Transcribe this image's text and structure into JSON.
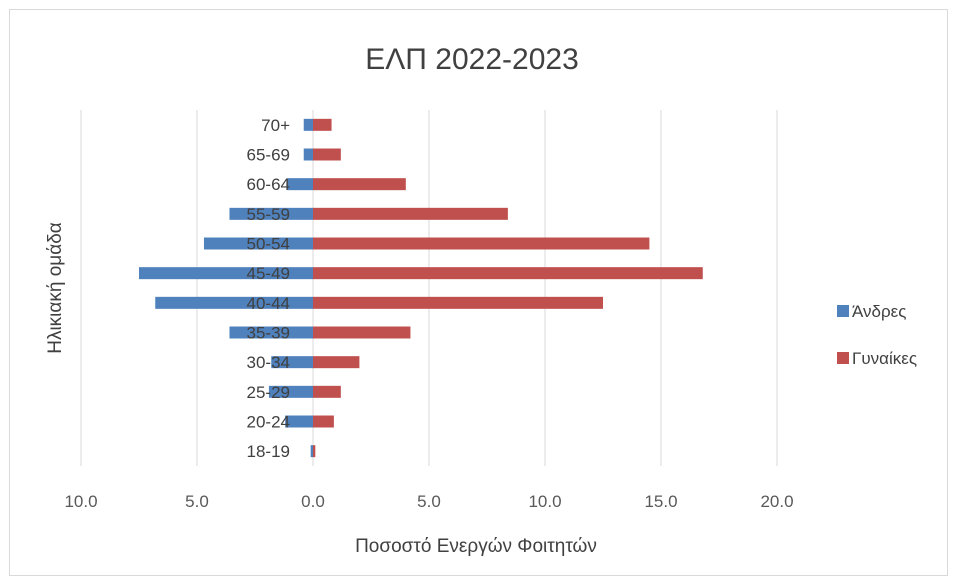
{
  "chart_data": {
    "type": "bar",
    "orientation": "horizontal",
    "title": "ΕΛΠ 2022-2023",
    "xlabel": "Ποσοστό Ενεργών Φοιτητών",
    "ylabel": "Ηλικιακή ομάδα",
    "categories": [
      "18-19",
      "20-24",
      "25-29",
      "30-34",
      "35-39",
      "40-44",
      "45-49",
      "50-54",
      "55-59",
      "60-64",
      "65-69",
      "70+"
    ],
    "series": [
      {
        "name": "Άνδρες",
        "color": "#4f81bd",
        "values": [
          -0.1,
          -1.2,
          -1.9,
          -1.8,
          -3.6,
          -6.8,
          -7.5,
          -4.7,
          -3.6,
          -1.1,
          -0.4,
          -0.4
        ]
      },
      {
        "name": "Γυναίκες",
        "color": "#c0504d",
        "values": [
          0.1,
          0.9,
          1.2,
          2.0,
          4.2,
          12.5,
          16.8,
          14.5,
          8.4,
          4.0,
          1.2,
          0.8
        ]
      }
    ],
    "xlim": [
      -10,
      25
    ],
    "xticks": [
      -10,
      -5,
      0,
      5,
      10,
      15,
      20
    ],
    "xtick_labels": [
      "10.0",
      "5.0",
      "0.0",
      "5.0",
      "10.0",
      "15.0",
      "20.0"
    ],
    "grid": true,
    "legend": "right"
  }
}
